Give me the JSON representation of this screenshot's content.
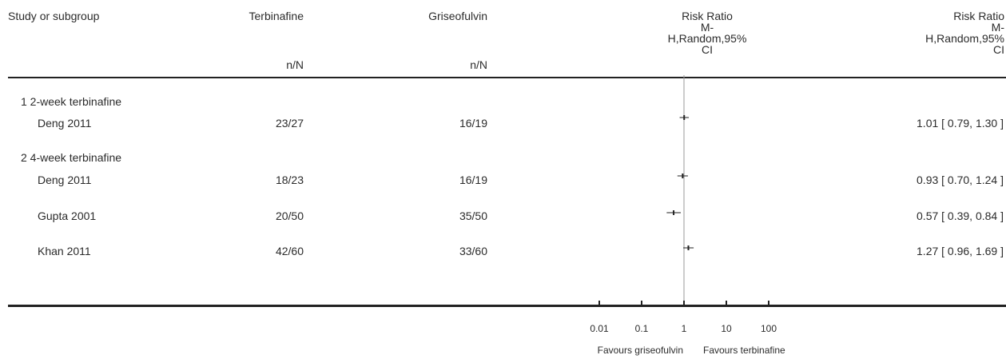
{
  "columns": {
    "study": "Study or subgroup",
    "treatment": "Terbinafine",
    "treatment_sub": "n/N",
    "control": "Griseofulvin",
    "control_sub": "n/N",
    "plot_header": [
      "Risk Ratio",
      "M-",
      "H,Random,95%",
      "CI"
    ],
    "effect_header": [
      "Risk Ratio",
      "M-",
      "H,Random,95%",
      "CI"
    ]
  },
  "subgroups": [
    {
      "title": "1 2-week terbinafine",
      "studies": [
        {
          "name": "Deng 2011",
          "treatment": "23/27",
          "control": "16/19",
          "effect": "1.01 [ 0.79, 1.30 ]"
        }
      ]
    },
    {
      "title": "2 4-week terbinafine",
      "studies": [
        {
          "name": "Deng 2011",
          "treatment": "18/23",
          "control": "16/19",
          "effect": "0.93 [ 0.70, 1.24 ]"
        },
        {
          "name": "Gupta 2001",
          "treatment": "20/50",
          "control": "35/50",
          "effect": "0.57 [ 0.39, 0.84 ]"
        },
        {
          "name": "Khan 2011",
          "treatment": "42/60",
          "control": "33/60",
          "effect": "1.27 [ 0.96, 1.69 ]"
        }
      ]
    }
  ],
  "chart_data": {
    "type": "scatter",
    "x_scale": "log",
    "xlim": [
      0.01,
      100
    ],
    "x_ticks": [
      "0.01",
      "0.1",
      "1",
      "10",
      "100"
    ],
    "x_tick_values": [
      0.01,
      0.1,
      1,
      10,
      100
    ],
    "reference_line": 1,
    "favours_left": "Favours griseofulvin",
    "favours_right": "Favours terbinafine",
    "points": [
      {
        "label": "Deng 2011",
        "subgroup": "1 2-week terbinafine",
        "rr": 1.01,
        "lower": 0.79,
        "upper": 1.3
      },
      {
        "label": "Deng 2011",
        "subgroup": "2 4-week terbinafine",
        "rr": 0.93,
        "lower": 0.7,
        "upper": 1.24
      },
      {
        "label": "Gupta 2001",
        "subgroup": "2 4-week terbinafine",
        "rr": 0.57,
        "lower": 0.39,
        "upper": 0.84
      },
      {
        "label": "Khan 2011",
        "subgroup": "2 4-week terbinafine",
        "rr": 1.27,
        "lower": 0.96,
        "upper": 1.69
      }
    ]
  }
}
